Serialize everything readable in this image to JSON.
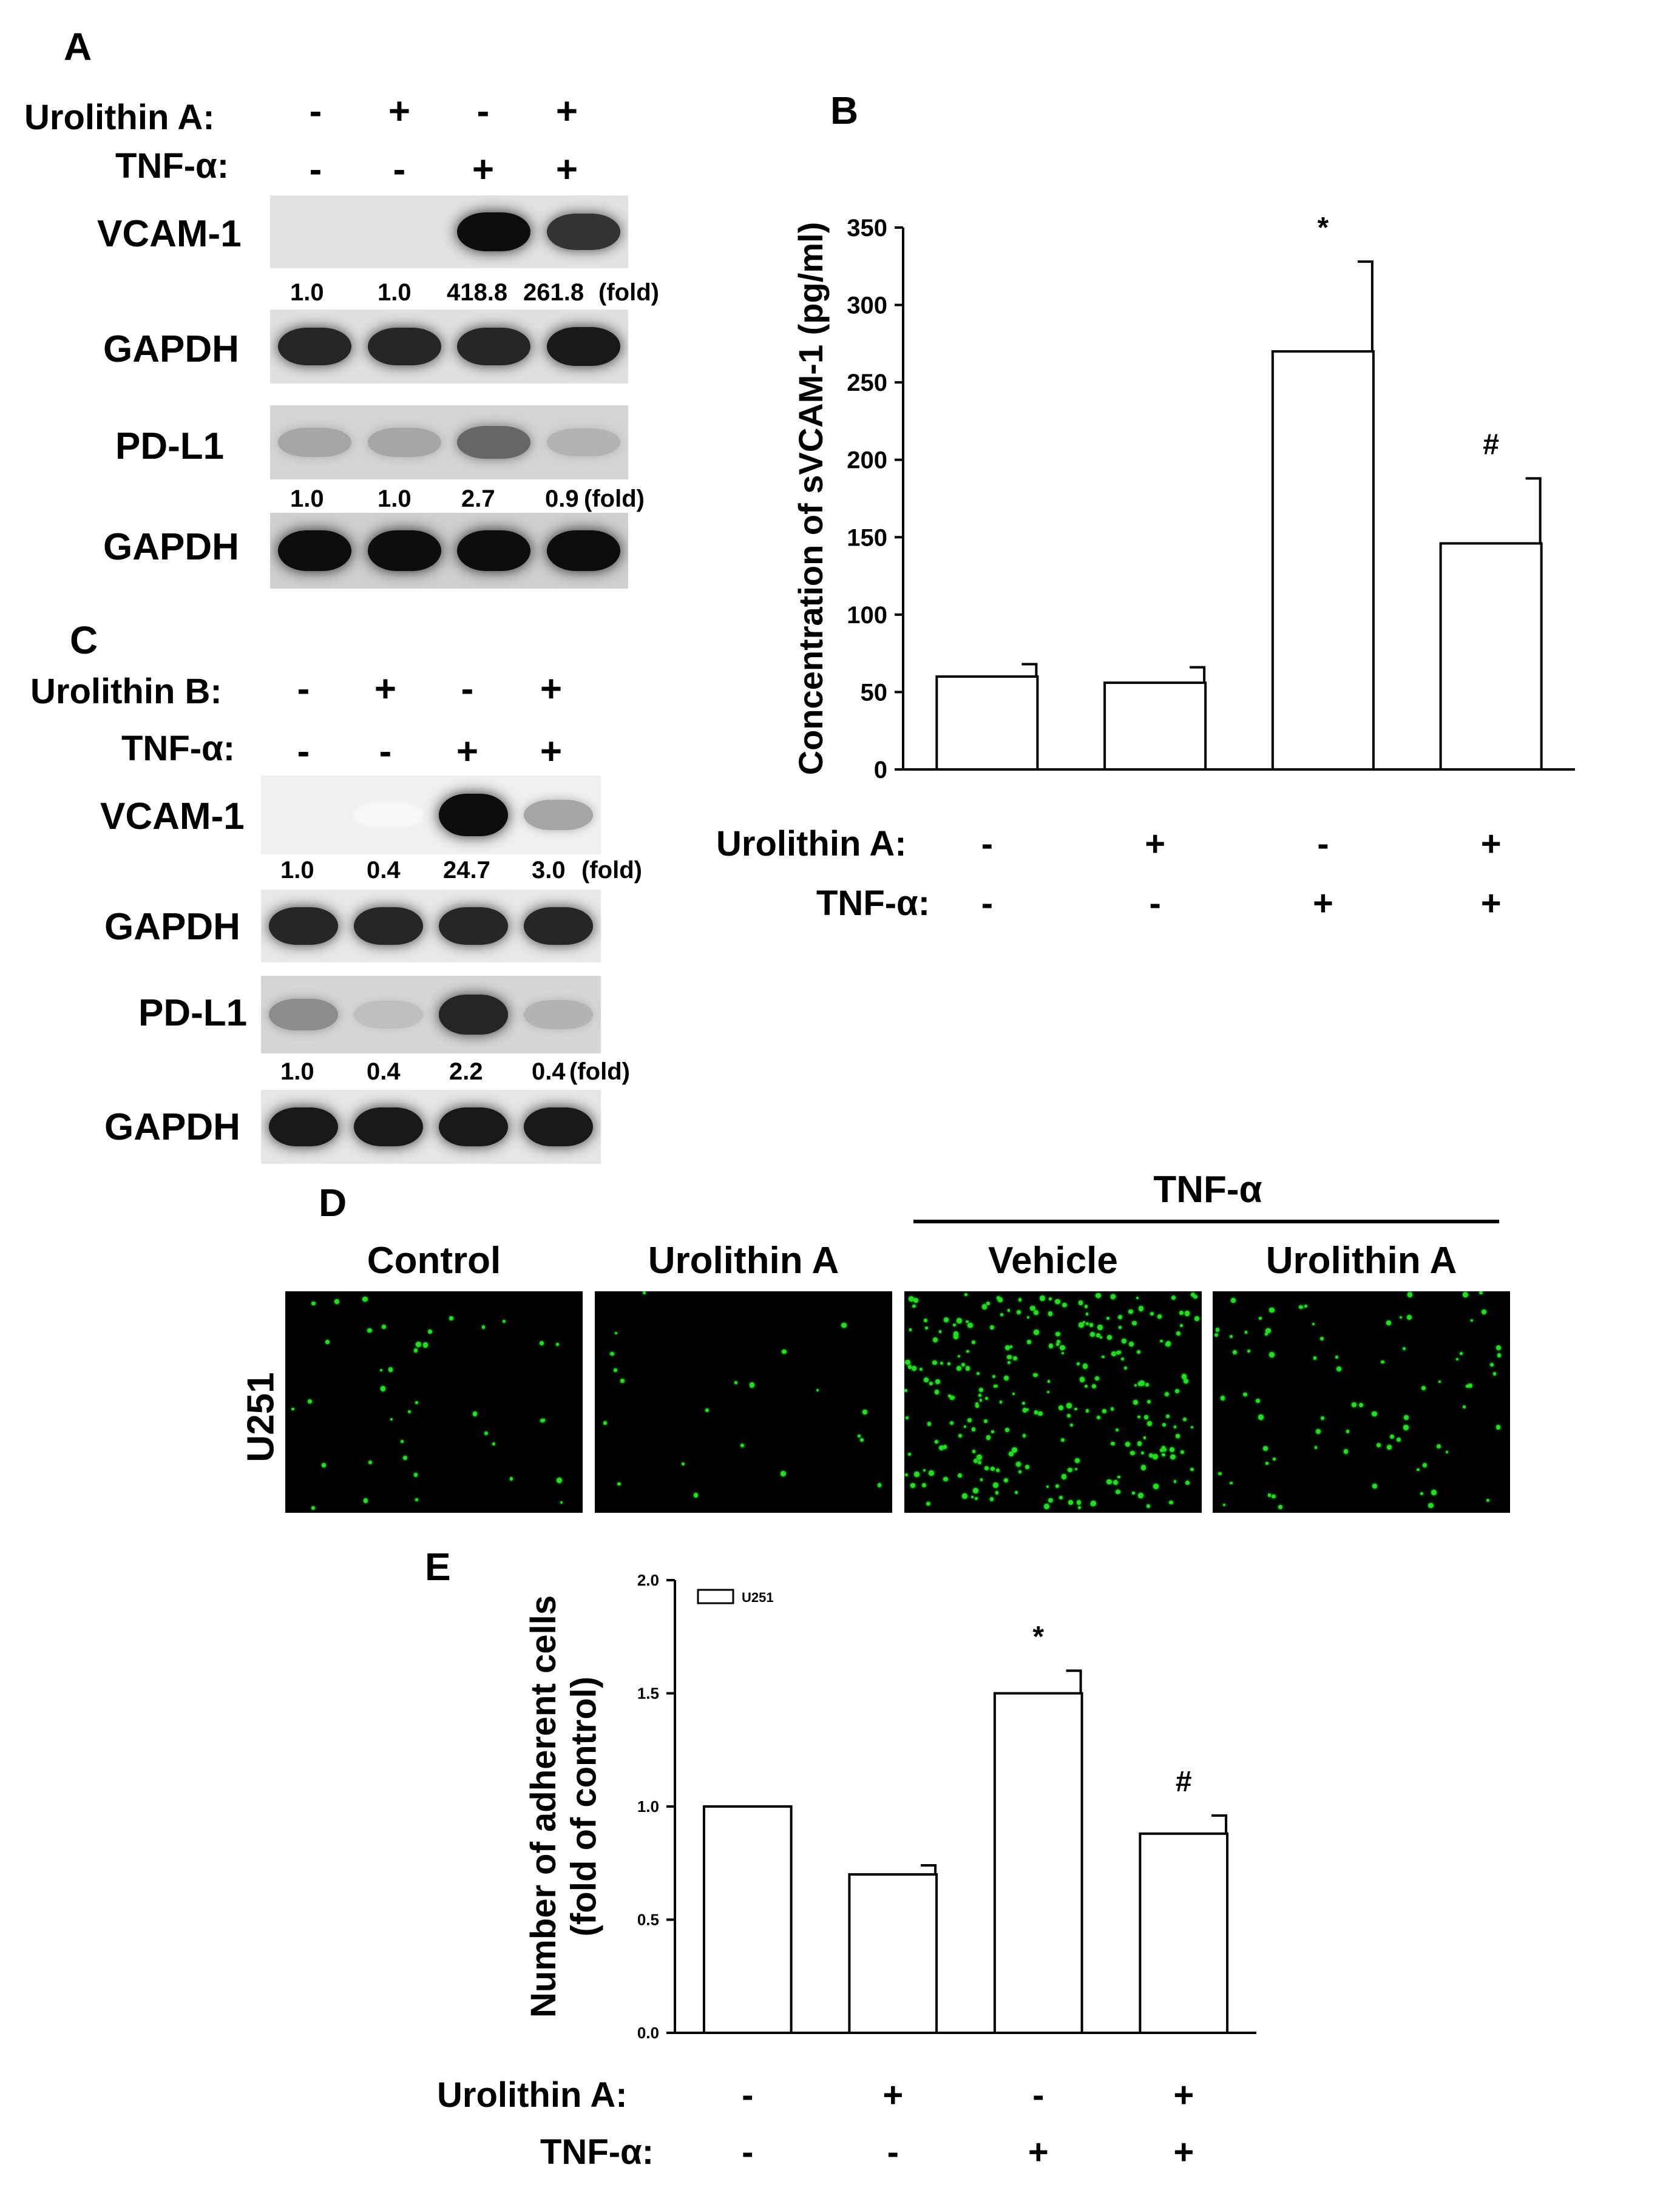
{
  "panels": {
    "A": {
      "letter": "A",
      "rows": [
        {
          "label": "Urolithin A:",
          "signs": [
            "-",
            "+",
            "-",
            "+"
          ]
        },
        {
          "label": "TNF-α:",
          "signs": [
            "-",
            "-",
            "+",
            "+"
          ]
        }
      ],
      "blots": [
        {
          "label": "VCAM-1",
          "folds": [
            "1.0",
            "1.0",
            "418.8",
            "261.8",
            "(fold)"
          ],
          "intensity": [
            0,
            0,
            0.95,
            0.8
          ]
        },
        {
          "label": "GAPDH",
          "folds": [],
          "intensity": [
            0.85,
            0.85,
            0.85,
            0.9
          ]
        },
        {
          "label": "PD-L1",
          "folds": [
            "1.0",
            "1.0",
            "2.7",
            "0.9",
            "(fold)"
          ],
          "intensity": [
            0.35,
            0.35,
            0.6,
            0.3
          ]
        },
        {
          "label": "GAPDH",
          "folds": [],
          "intensity": [
            0.95,
            0.95,
            0.95,
            0.95
          ]
        }
      ]
    },
    "B": {
      "letter": "B"
    },
    "C": {
      "letter": "C",
      "rows": [
        {
          "label": "Urolithin B:",
          "signs": [
            "-",
            "+",
            "-",
            "+"
          ]
        },
        {
          "label": "TNF-α:",
          "signs": [
            "-",
            "-",
            "+",
            "+"
          ]
        }
      ],
      "blots": [
        {
          "label": "VCAM-1",
          "folds": [
            "1.0",
            "0.4",
            "24.7",
            "3.0",
            "(fold)"
          ],
          "intensity": [
            0.06,
            0.03,
            0.95,
            0.35
          ]
        },
        {
          "label": "GAPDH",
          "folds": [],
          "intensity": [
            0.85,
            0.85,
            0.85,
            0.85
          ]
        },
        {
          "label": "PD-L1",
          "folds": [
            "1.0",
            "0.4",
            "2.2",
            "0.4",
            "(fold)"
          ],
          "intensity": [
            0.45,
            0.25,
            0.85,
            0.3
          ]
        },
        {
          "label": "GAPDH",
          "folds": [],
          "intensity": [
            0.9,
            0.9,
            0.9,
            0.9
          ]
        }
      ]
    },
    "D": {
      "letter": "D",
      "group_label": "TNF-α",
      "columns": [
        "Control",
        "Urolithin A",
        "Vehicle",
        "Urolithin A"
      ],
      "row_label": "U251",
      "cell_density": [
        0.15,
        0.08,
        1.0,
        0.3
      ],
      "stain_color": "#22dd22"
    },
    "E": {
      "letter": "E"
    }
  },
  "chart_data": [
    {
      "type": "bar",
      "panel": "B",
      "ylabel": "Concentration of sVCAM-1 (pg/ml)",
      "ylim": [
        0,
        350
      ],
      "yticks": [
        "0",
        "50",
        "100",
        "150",
        "200",
        "250",
        "300",
        "350"
      ],
      "values": [
        60,
        56,
        270,
        146
      ],
      "errors": [
        8,
        10,
        58,
        42
      ],
      "annotations": [
        "",
        "",
        "*",
        "#"
      ],
      "conditions": [
        {
          "label": "Urolithin A:",
          "signs": [
            "-",
            "+",
            "-",
            "+"
          ]
        },
        {
          "label": "TNF-α:",
          "signs": [
            "-",
            "-",
            "+",
            "+"
          ]
        }
      ]
    },
    {
      "type": "bar",
      "panel": "E",
      "ylabel": "Number of adherent cells (fold of control)",
      "ylabel_lines": [
        "Number of adherent cells",
        "(fold of control)"
      ],
      "ylim": [
        0,
        2.0
      ],
      "yticks": [
        "0.0",
        "0.5",
        "1.0",
        "1.5",
        "2.0"
      ],
      "legend": "U251",
      "values": [
        1.0,
        0.7,
        1.5,
        0.88
      ],
      "errors": [
        0,
        0.04,
        0.1,
        0.08
      ],
      "annotations": [
        "",
        "",
        "*",
        "#"
      ],
      "conditions": [
        {
          "label": "Urolithin A:",
          "signs": [
            "-",
            "+",
            "-",
            "+"
          ]
        },
        {
          "label": "TNF-α:",
          "signs": [
            "-",
            "-",
            "+",
            "+"
          ]
        }
      ]
    }
  ]
}
